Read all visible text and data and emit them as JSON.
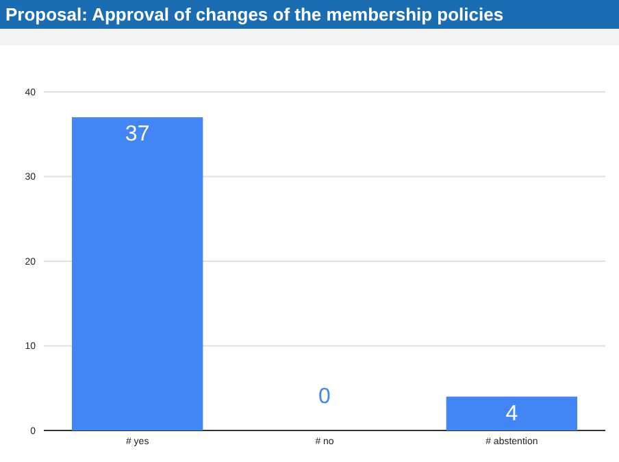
{
  "chart_data": {
    "type": "bar",
    "title": "Proposal: Approval of changes of the membership policies",
    "categories": [
      "# yes",
      "# no",
      "# abstention"
    ],
    "values": [
      37,
      0,
      4
    ],
    "color": "#4285f4",
    "ylim": [
      0,
      40
    ],
    "yticks": [
      0,
      10,
      20,
      30,
      40
    ],
    "grid": "y",
    "data_labels": true
  }
}
